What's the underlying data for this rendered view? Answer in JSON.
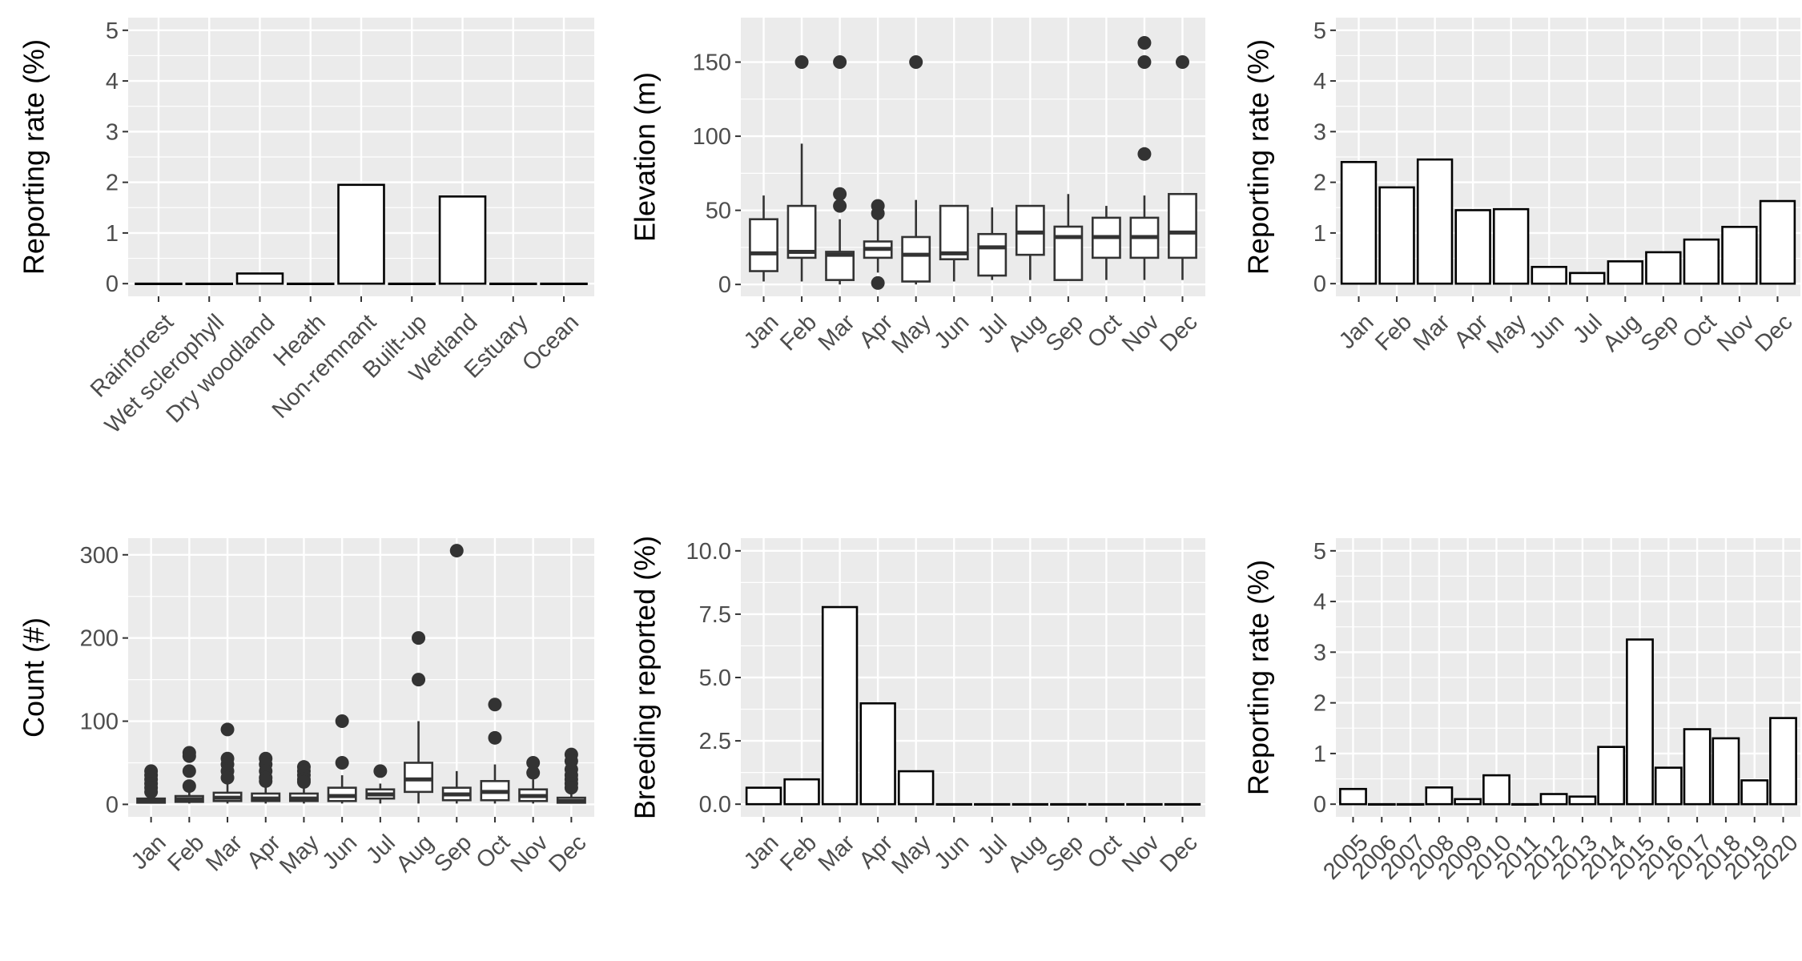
{
  "colors": {
    "panel_background": "#ebebeb",
    "grid_line": "#ffffff",
    "bar_fill": "#ffffff",
    "bar_stroke": "#000000",
    "box_stroke": "#333333",
    "outlier_fill": "#333333",
    "tick_text": "#4d4d4d",
    "axis_title_text": "#000000"
  },
  "chart_data": [
    {
      "type": "bar",
      "ylabel": "Reporting rate (%)",
      "categories": [
        "Rainforest",
        "Wet sclerophyll",
        "Dry woodland",
        "Heath",
        "Non-remnant",
        "Built-up",
        "Wetland",
        "Estuary",
        "Ocean"
      ],
      "values": [
        0,
        0,
        0.2,
        0,
        1.95,
        0,
        1.72,
        0,
        0
      ],
      "ylim": [
        -0.25,
        5.25
      ],
      "yticks": [
        0,
        1,
        2,
        3,
        4,
        5
      ],
      "ytick_labels": [
        "0",
        "1",
        "2",
        "3",
        "4",
        "5"
      ],
      "xtick_rotation": 45,
      "grid": true,
      "legend": "none"
    },
    {
      "type": "box",
      "ylabel": "Elevation (m)",
      "categories": [
        "Jan",
        "Feb",
        "Mar",
        "Apr",
        "May",
        "Jun",
        "Jul",
        "Aug",
        "Sep",
        "Oct",
        "Nov",
        "Dec"
      ],
      "boxes": [
        {
          "whisker_low": 2,
          "q1": 9,
          "median": 21,
          "q3": 44,
          "whisker_high": 60,
          "outliers": []
        },
        {
          "whisker_low": 2,
          "q1": 18,
          "median": 22,
          "q3": 53,
          "whisker_high": 95,
          "outliers": [
            150
          ]
        },
        {
          "whisker_low": 0,
          "q1": 3,
          "median": 20,
          "q3": 22,
          "whisker_high": 44,
          "outliers": [
            150,
            61,
            53
          ]
        },
        {
          "whisker_low": 8,
          "q1": 18,
          "median": 24,
          "q3": 29,
          "whisker_high": 45,
          "outliers": [
            53,
            48,
            1
          ]
        },
        {
          "whisker_low": 0,
          "q1": 2,
          "median": 20,
          "q3": 32,
          "whisker_high": 57,
          "outliers": [
            150
          ]
        },
        {
          "whisker_low": 2,
          "q1": 17,
          "median": 21,
          "q3": 53,
          "whisker_high": 53,
          "outliers": []
        },
        {
          "whisker_low": 3,
          "q1": 6,
          "median": 25,
          "q3": 34,
          "whisker_high": 52,
          "outliers": []
        },
        {
          "whisker_low": 3,
          "q1": 20,
          "median": 35,
          "q3": 53,
          "whisker_high": 53,
          "outliers": []
        },
        {
          "whisker_low": 3,
          "q1": 3,
          "median": 32,
          "q3": 39,
          "whisker_high": 61,
          "outliers": []
        },
        {
          "whisker_low": 3,
          "q1": 18,
          "median": 32,
          "q3": 45,
          "whisker_high": 53,
          "outliers": []
        },
        {
          "whisker_low": 3,
          "q1": 18,
          "median": 32,
          "q3": 45,
          "whisker_high": 60,
          "outliers": [
            163,
            150,
            88
          ]
        },
        {
          "whisker_low": 3,
          "q1": 18,
          "median": 35,
          "q3": 61,
          "whisker_high": 61,
          "outliers": [
            150
          ]
        }
      ],
      "ylim": [
        -8,
        180
      ],
      "yticks": [
        0,
        50,
        100,
        150
      ],
      "ytick_labels": [
        "0",
        "50",
        "100",
        "150"
      ],
      "xtick_rotation": 45,
      "grid": true,
      "legend": "none"
    },
    {
      "type": "bar",
      "ylabel": "Reporting rate (%)",
      "categories": [
        "Jan",
        "Feb",
        "Mar",
        "Apr",
        "May",
        "Jun",
        "Jul",
        "Aug",
        "Sep",
        "Oct",
        "Nov",
        "Dec"
      ],
      "values": [
        2.4,
        1.9,
        2.45,
        1.45,
        1.47,
        0.33,
        0.21,
        0.44,
        0.62,
        0.87,
        1.12,
        1.63
      ],
      "ylim": [
        -0.25,
        5.25
      ],
      "yticks": [
        0,
        1,
        2,
        3,
        4,
        5
      ],
      "ytick_labels": [
        "0",
        "1",
        "2",
        "3",
        "4",
        "5"
      ],
      "xtick_rotation": 45,
      "grid": true,
      "legend": "none"
    },
    {
      "type": "box",
      "ylabel": "Count (#)",
      "categories": [
        "Jan",
        "Feb",
        "Mar",
        "Apr",
        "May",
        "Jun",
        "Jul",
        "Aug",
        "Sep",
        "Oct",
        "Nov",
        "Dec"
      ],
      "boxes": [
        {
          "whisker_low": 1,
          "q1": 2,
          "median": 4,
          "q3": 7,
          "whisker_high": 12,
          "outliers": [
            40,
            35,
            30,
            25,
            20,
            15
          ]
        },
        {
          "whisker_low": 1,
          "q1": 3,
          "median": 6,
          "q3": 10,
          "whisker_high": 20,
          "outliers": [
            62,
            58,
            40,
            22
          ]
        },
        {
          "whisker_low": 1,
          "q1": 4,
          "median": 8,
          "q3": 14,
          "whisker_high": 28,
          "outliers": [
            90,
            55,
            48,
            40,
            32
          ]
        },
        {
          "whisker_low": 1,
          "q1": 4,
          "median": 7,
          "q3": 13,
          "whisker_high": 25,
          "outliers": [
            55,
            48,
            40,
            32,
            28
          ]
        },
        {
          "whisker_low": 1,
          "q1": 4,
          "median": 7,
          "q3": 13,
          "whisker_high": 25,
          "outliers": [
            45,
            40,
            35,
            30,
            27
          ]
        },
        {
          "whisker_low": 1,
          "q1": 4,
          "median": 10,
          "q3": 20,
          "whisker_high": 35,
          "outliers": [
            100,
            50
          ]
        },
        {
          "whisker_low": 1,
          "q1": 7,
          "median": 12,
          "q3": 18,
          "whisker_high": 25,
          "outliers": [
            40
          ]
        },
        {
          "whisker_low": 1,
          "q1": 15,
          "median": 30,
          "q3": 50,
          "whisker_high": 100,
          "outliers": [
            200,
            150
          ]
        },
        {
          "whisker_low": 1,
          "q1": 5,
          "median": 12,
          "q3": 20,
          "whisker_high": 40,
          "outliers": [
            305
          ]
        },
        {
          "whisker_low": 1,
          "q1": 5,
          "median": 15,
          "q3": 28,
          "whisker_high": 48,
          "outliers": [
            120,
            80
          ]
        },
        {
          "whisker_low": 1,
          "q1": 4,
          "median": 10,
          "q3": 18,
          "whisker_high": 30,
          "outliers": [
            50,
            38
          ]
        },
        {
          "whisker_low": 1,
          "q1": 2,
          "median": 4,
          "q3": 8,
          "whisker_high": 15,
          "outliers": [
            60,
            52,
            42,
            35,
            30,
            25,
            20
          ]
        }
      ],
      "ylim": [
        -15,
        320
      ],
      "yticks": [
        0,
        100,
        200,
        300
      ],
      "ytick_labels": [
        "0",
        "100",
        "200",
        "300"
      ],
      "xtick_rotation": 45,
      "grid": true,
      "legend": "none"
    },
    {
      "type": "bar",
      "ylabel": "Breeding reported (%)",
      "categories": [
        "Jan",
        "Feb",
        "Mar",
        "Apr",
        "May",
        "Jun",
        "Jul",
        "Aug",
        "Sep",
        "Oct",
        "Nov",
        "Dec"
      ],
      "values": [
        0.65,
        0.98,
        7.78,
        3.98,
        1.3,
        0,
        0,
        0,
        0,
        0,
        0,
        0
      ],
      "ylim": [
        -0.5,
        10.5
      ],
      "yticks": [
        0,
        2.5,
        5,
        7.5,
        10
      ],
      "ytick_labels": [
        "0.0",
        "2.5",
        "5.0",
        "7.5",
        "10.0"
      ],
      "xtick_rotation": 45,
      "grid": true,
      "legend": "none"
    },
    {
      "type": "bar",
      "ylabel": "Reporting rate (%)",
      "categories": [
        "2005",
        "2006",
        "2007",
        "2008",
        "2009",
        "2010",
        "2011",
        "2012",
        "2013",
        "2014",
        "2015",
        "2016",
        "2017",
        "2018",
        "2019",
        "2020"
      ],
      "values": [
        0.3,
        0,
        0,
        0.33,
        0.1,
        0.57,
        0,
        0.2,
        0.15,
        1.13,
        3.25,
        0.72,
        1.48,
        1.3,
        0.47,
        1.7
      ],
      "ylim": [
        -0.25,
        5.25
      ],
      "yticks": [
        0,
        1,
        2,
        3,
        4,
        5
      ],
      "ytick_labels": [
        "0",
        "1",
        "2",
        "3",
        "4",
        "5"
      ],
      "xtick_rotation": 45,
      "grid": true,
      "legend": "none"
    }
  ]
}
